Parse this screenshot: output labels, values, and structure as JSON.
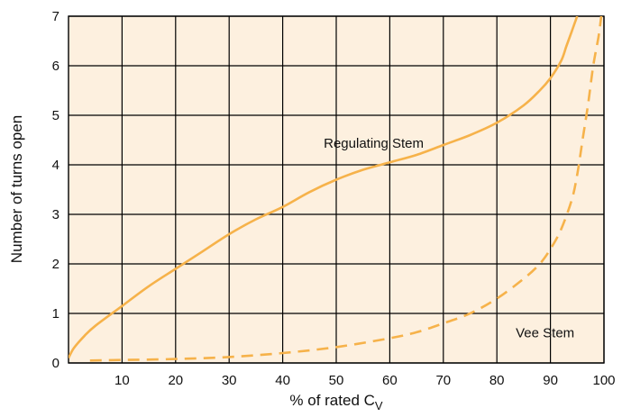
{
  "chart_data": {
    "type": "line",
    "xlabel": "% of rated C",
    "xlabel_sub": "V",
    "ylabel": "Number of turns open",
    "xlim": [
      0,
      100
    ],
    "ylim": [
      0,
      7
    ],
    "x_ticks": [
      10,
      20,
      30,
      40,
      50,
      60,
      70,
      80,
      90,
      100
    ],
    "y_ticks": [
      0,
      1,
      2,
      3,
      4,
      5,
      6,
      7
    ],
    "grid": true,
    "colors": {
      "plot_background": "#fdf0df",
      "grid": "#000000",
      "series": "#f6b24a"
    },
    "series": [
      {
        "name": "Regulating Stem",
        "style": "solid",
        "points": [
          [
            0,
            0.1
          ],
          [
            1,
            0.3
          ],
          [
            3,
            0.55
          ],
          [
            5,
            0.75
          ],
          [
            10,
            1.15
          ],
          [
            15,
            1.55
          ],
          [
            20,
            1.9
          ],
          [
            25,
            2.25
          ],
          [
            30,
            2.6
          ],
          [
            35,
            2.9
          ],
          [
            40,
            3.15
          ],
          [
            45,
            3.45
          ],
          [
            50,
            3.7
          ],
          [
            55,
            3.9
          ],
          [
            60,
            4.05
          ],
          [
            65,
            4.2
          ],
          [
            70,
            4.4
          ],
          [
            75,
            4.6
          ],
          [
            80,
            4.85
          ],
          [
            85,
            5.2
          ],
          [
            88,
            5.5
          ],
          [
            90,
            5.75
          ],
          [
            92,
            6.1
          ],
          [
            93,
            6.4
          ],
          [
            94,
            6.7
          ],
          [
            95,
            7.0
          ]
        ]
      },
      {
        "name": "Vee Stem",
        "style": "dashed",
        "points": [
          [
            4,
            0.05
          ],
          [
            10,
            0.06
          ],
          [
            20,
            0.08
          ],
          [
            30,
            0.12
          ],
          [
            40,
            0.2
          ],
          [
            50,
            0.32
          ],
          [
            60,
            0.5
          ],
          [
            65,
            0.62
          ],
          [
            70,
            0.8
          ],
          [
            75,
            1.0
          ],
          [
            80,
            1.3
          ],
          [
            85,
            1.7
          ],
          [
            88,
            2.0
          ],
          [
            90,
            2.3
          ],
          [
            92,
            2.7
          ],
          [
            94,
            3.3
          ],
          [
            95,
            3.8
          ],
          [
            96,
            4.5
          ],
          [
            97,
            5.2
          ],
          [
            98,
            6.0
          ],
          [
            99,
            6.6
          ],
          [
            99.5,
            7.0
          ]
        ]
      }
    ],
    "annotations": [
      {
        "text": "Regulating Stem",
        "x": 57,
        "y": 4.35
      },
      {
        "text": "Vee Stem",
        "x": 89,
        "y": 0.52
      }
    ]
  }
}
